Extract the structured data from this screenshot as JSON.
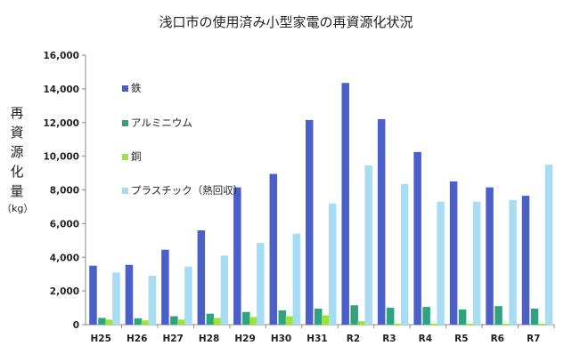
{
  "chart_data": {
    "type": "bar",
    "title": "浅口市の使用済み小型家電の再資源化状況",
    "ylabel": "再資源化量",
    "yunit": "（kg）",
    "ylim": [
      0,
      16000
    ],
    "yticks": [
      0,
      2000,
      4000,
      6000,
      8000,
      10000,
      12000,
      14000,
      16000
    ],
    "ytick_labels": [
      "0",
      "2,000",
      "4,000",
      "6,000",
      "8,000",
      "10,000",
      "12,000",
      "14,000",
      "16,000"
    ],
    "grid": false,
    "legend": "inside-top-left",
    "categories": [
      "H25",
      "H26",
      "H27",
      "H28",
      "H29",
      "H30",
      "H31",
      "R2",
      "R3",
      "R4",
      "R5",
      "R6",
      "R7"
    ],
    "series": [
      {
        "name": "鉄",
        "color": "#4a5fc8",
        "values": [
          3500,
          3550,
          4450,
          5600,
          8150,
          8950,
          12150,
          14350,
          12200,
          10250,
          8500,
          8150,
          7650
        ]
      },
      {
        "name": "アルミニウム",
        "color": "#2fa37f",
        "values": [
          400,
          380,
          500,
          650,
          750,
          850,
          950,
          1150,
          1000,
          1050,
          900,
          1100,
          950
        ]
      },
      {
        "name": "銅",
        "color": "#9ee23a",
        "values": [
          300,
          250,
          300,
          400,
          450,
          500,
          550,
          200,
          50,
          50,
          50,
          50,
          50
        ]
      },
      {
        "name": "プラスチック（熱回収）",
        "color": "#a7dcf2",
        "values": [
          3100,
          2900,
          3450,
          4100,
          4850,
          5400,
          7200,
          9450,
          8350,
          7300,
          7300,
          7400,
          9500
        ]
      }
    ]
  }
}
